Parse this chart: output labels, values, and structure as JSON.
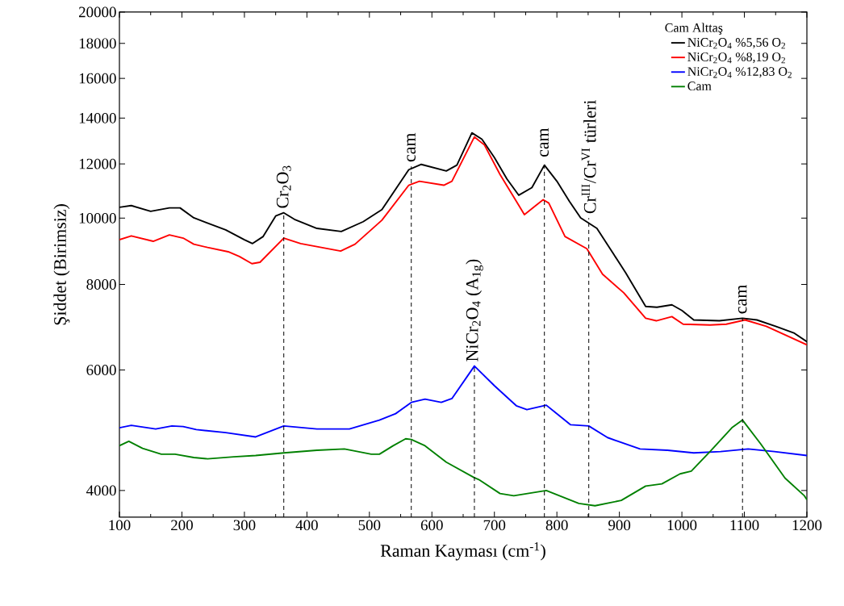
{
  "chart_data": {
    "type": "line",
    "xlabel": "Raman Kayması (cm$^{-1}$)",
    "ylabel": "Şiddet (Birimsiz)",
    "legend_title": "Cam Alttaş",
    "xlim": [
      100,
      1200
    ],
    "xticks": [
      100,
      200,
      300,
      400,
      500,
      600,
      700,
      800,
      900,
      1000,
      1100,
      1200
    ],
    "ylim": [
      3657,
      20000
    ],
    "yticks": [
      4000,
      6000,
      8000,
      10000,
      12000,
      14000,
      16000,
      18000,
      20000
    ],
    "log": "y",
    "grid": false,
    "legend": "top right",
    "marker": "none",
    "line_style": "solid",
    "series": [
      {
        "name": "NiCr$_{2}$O$_{4}$ %5,56 O$_{2}$",
        "color": "#000000",
        "x": [
          100,
          119,
          150,
          180,
          197,
          219,
          270,
          300,
          313,
          330,
          350,
          363,
          380,
          416,
          455,
          490,
          520,
          563,
          583,
          623,
          640,
          664,
          680,
          700,
          720,
          739,
          760,
          780,
          800,
          820,
          838,
          864,
          890,
          910,
          942,
          960,
          984,
          1000,
          1019,
          1060,
          1097,
          1120,
          1150,
          1180,
          1200
        ],
        "values": [
          10370,
          10430,
          10230,
          10350,
          10350,
          10010,
          9610,
          9300,
          9180,
          9400,
          10070,
          10180,
          9960,
          9660,
          9560,
          9880,
          10290,
          11770,
          11980,
          11720,
          11950,
          13320,
          13040,
          12260,
          11410,
          10800,
          11080,
          11950,
          11320,
          10580,
          10010,
          9660,
          8880,
          8320,
          7430,
          7410,
          7470,
          7330,
          7100,
          7080,
          7140,
          7100,
          6950,
          6790,
          6600
        ]
      },
      {
        "name": "NiCr$_{2}$O$_{4}$ %8,19 O$_{2}$",
        "color": "#ff0000",
        "x": [
          100,
          119,
          154,
          180,
          202,
          219,
          241,
          274,
          292,
          312,
          325,
          363,
          390,
          454,
          477,
          520,
          563,
          580,
          619,
          632,
          668,
          684,
          709,
          748,
          778,
          787,
          813,
          848,
          873,
          907,
          942,
          959,
          984,
          1002,
          1045,
          1071,
          1101,
          1135,
          1200
        ],
        "values": [
          9300,
          9420,
          9250,
          9450,
          9350,
          9160,
          9060,
          8930,
          8790,
          8580,
          8620,
          9350,
          9180,
          8950,
          9160,
          9930,
          11170,
          11320,
          11170,
          11320,
          13140,
          12790,
          11580,
          10120,
          10640,
          10520,
          9400,
          9020,
          8280,
          7780,
          7140,
          7080,
          7180,
          7000,
          6980,
          7000,
          7100,
          6950,
          6530
        ]
      },
      {
        "name": "NiCr$_{2}$O$_{4}$ %12,83 O$_{2}$",
        "color": "#0000ff",
        "x": [
          100,
          119,
          158,
          184,
          202,
          223,
          270,
          318,
          363,
          416,
          468,
          516,
          542,
          567,
          589,
          615,
          632,
          668,
          700,
          735,
          752,
          783,
          822,
          851,
          881,
          933,
          977,
          1019,
          1062,
          1106,
          1148,
          1200
        ],
        "values": [
          4940,
          4980,
          4920,
          4970,
          4960,
          4910,
          4860,
          4790,
          4970,
          4920,
          4920,
          5070,
          5180,
          5380,
          5440,
          5380,
          5450,
          6080,
          5690,
          5320,
          5250,
          5330,
          4990,
          4970,
          4780,
          4600,
          4580,
          4540,
          4560,
          4600,
          4560,
          4500
        ]
      },
      {
        "name": "Cam",
        "color": "#008000",
        "x": [
          100,
          115,
          137,
          167,
          189,
          219,
          241,
          283,
          318,
          363,
          416,
          460,
          503,
          516,
          538,
          558,
          567,
          589,
          623,
          667,
          675,
          709,
          731,
          783,
          835,
          861,
          903,
          942,
          968,
          997,
          1015,
          1045,
          1080,
          1097,
          1126,
          1165,
          1196,
          1200
        ],
        "values": [
          4650,
          4720,
          4610,
          4520,
          4520,
          4470,
          4450,
          4480,
          4500,
          4540,
          4580,
          4600,
          4520,
          4520,
          4650,
          4760,
          4750,
          4650,
          4400,
          4180,
          4150,
          3960,
          3930,
          4000,
          3830,
          3800,
          3870,
          4060,
          4090,
          4230,
          4270,
          4560,
          4940,
          5070,
          4680,
          4170,
          3930,
          3880
        ]
      }
    ],
    "annotations": [
      {
        "text": "Cr$_{2}$O$_{3}$",
        "x": 363,
        "y": 10180
      },
      {
        "text": "cam",
        "x": 567,
        "y": 11900
      },
      {
        "text": "NiCr$_{2}$O$_{4}$ (A$_{1g}$)",
        "x": 668,
        "y": 6080
      },
      {
        "text": "cam",
        "x": 780,
        "y": 12100
      },
      {
        "text": "Cr$^{III}$/Cr$^{VI}$ türleri",
        "x": 851,
        "y": 10000
      },
      {
        "text": "cam",
        "x": 1097,
        "y": 7140
      }
    ]
  }
}
